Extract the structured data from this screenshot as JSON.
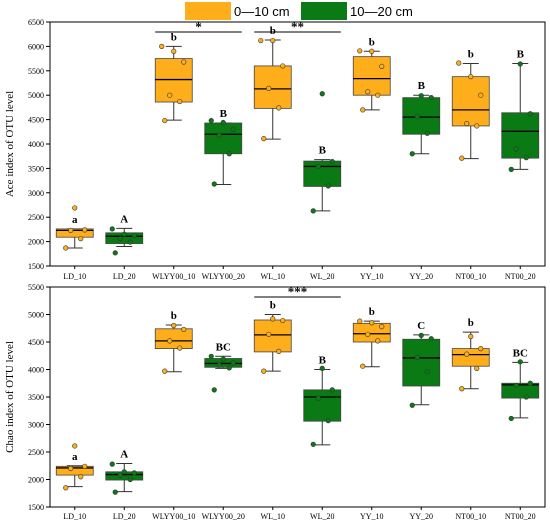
{
  "legend": [
    {
      "label": "0—10 cm",
      "color": "#FFAE1B"
    },
    {
      "label": "10—20 cm",
      "color": "#0A7A14"
    }
  ],
  "chart_data": [
    {
      "type": "boxplot",
      "ylabel": "Ace index of OTU level",
      "ylim": [
        1500,
        6500
      ],
      "yticks": [
        1500,
        2000,
        2500,
        3000,
        3500,
        4000,
        4500,
        5000,
        5500,
        6000,
        6500
      ],
      "categories": [
        "LD_10",
        "LD_20",
        "WLYY00_10",
        "WLYY00_20",
        "WL_10",
        "WL_20",
        "YY_10",
        "YY_20",
        "NT00_10",
        "NT00_20"
      ],
      "boxes": [
        {
          "whisker_low": 1870,
          "q1": 2090,
          "median": 2230,
          "q3": 2260,
          "whisker_high": 2260,
          "letter": "a",
          "points": [
            1870,
            2060,
            2230,
            2240,
            2690
          ]
        },
        {
          "whisker_low": 1900,
          "q1": 1960,
          "median": 2110,
          "q3": 2180,
          "whisker_high": 2270,
          "letter": "A",
          "points": [
            1770,
            1990,
            2060,
            2130,
            2150,
            2260
          ]
        },
        {
          "whisker_low": 4490,
          "q1": 4860,
          "median": 5320,
          "q3": 5750,
          "whisker_high": 6000,
          "letter": "b",
          "points": [
            4480,
            4870,
            5000,
            5680,
            5900,
            6000
          ]
        },
        {
          "whisker_low": 3170,
          "q1": 3800,
          "median": 4200,
          "q3": 4430,
          "whisker_high": 4430,
          "letter": "B",
          "points": [
            3180,
            3800,
            4180,
            4300,
            4440,
            4480
          ]
        },
        {
          "whisker_low": 4100,
          "q1": 4730,
          "median": 5130,
          "q3": 5600,
          "whisker_high": 6130,
          "letter": "b",
          "points": [
            4110,
            4740,
            5140,
            5600,
            6120,
            6120
          ]
        },
        {
          "whisker_low": 2630,
          "q1": 3130,
          "median": 3540,
          "q3": 3650,
          "whisker_high": 3680,
          "letter": "B",
          "points": [
            2630,
            3140,
            3540,
            3640,
            5030
          ]
        },
        {
          "whisker_low": 4700,
          "q1": 5000,
          "median": 5340,
          "q3": 5790,
          "whisker_high": 5900,
          "letter": "b",
          "points": [
            4700,
            5000,
            5070,
            5590,
            5900,
            5910
          ]
        },
        {
          "whisker_low": 3800,
          "q1": 4200,
          "median": 4550,
          "q3": 4950,
          "whisker_high": 5000,
          "letter": "B",
          "points": [
            3800,
            4220,
            4560,
            4950,
            4990
          ]
        },
        {
          "whisker_low": 3700,
          "q1": 4370,
          "median": 4700,
          "q3": 5380,
          "whisker_high": 5650,
          "letter": "b",
          "points": [
            3710,
            4370,
            4420,
            5000,
            5380,
            5660
          ]
        },
        {
          "whisker_low": 3480,
          "q1": 3710,
          "median": 4260,
          "q3": 4640,
          "whisker_high": 5650,
          "letter": "B",
          "points": [
            3480,
            3720,
            3900,
            4620,
            5640
          ]
        }
      ],
      "significance": [
        {
          "from": 2,
          "to": 3,
          "label": "*"
        },
        {
          "from": 4,
          "to": 5,
          "label": "**"
        }
      ]
    },
    {
      "type": "boxplot",
      "ylabel": "Chao index of OTU level",
      "ylim": [
        1500,
        5500
      ],
      "yticks": [
        1500,
        2000,
        2500,
        3000,
        3500,
        4000,
        4500,
        5000,
        5500
      ],
      "categories": [
        "LD_10",
        "LD_20",
        "WLYY00_10",
        "WLYY00_20",
        "WL_10",
        "WL_20",
        "YY_10",
        "YY_20",
        "NT00_10",
        "NT00_20"
      ],
      "boxes": [
        {
          "whisker_low": 1870,
          "q1": 2080,
          "median": 2210,
          "q3": 2240,
          "whisker_high": 2250,
          "letter": "a",
          "points": [
            1850,
            2050,
            2200,
            2240,
            2610
          ]
        },
        {
          "whisker_low": 1780,
          "q1": 1990,
          "median": 2090,
          "q3": 2140,
          "whisker_high": 2290,
          "letter": "A",
          "points": [
            1770,
            2000,
            2080,
            2120,
            2140,
            2280
          ]
        },
        {
          "whisker_low": 3960,
          "q1": 4380,
          "median": 4520,
          "q3": 4740,
          "whisker_high": 4810,
          "letter": "b",
          "points": [
            3970,
            4390,
            4520,
            4730,
            4800
          ]
        },
        {
          "whisker_low": 4020,
          "q1": 4040,
          "median": 4110,
          "q3": 4200,
          "whisker_high": 4240,
          "letter": "BC",
          "points": [
            3630,
            4030,
            4080,
            4120,
            4190,
            4240
          ]
        },
        {
          "whisker_low": 3970,
          "q1": 4320,
          "median": 4630,
          "q3": 4900,
          "whisker_high": 5000,
          "letter": "b",
          "points": [
            3970,
            4330,
            4640,
            4890,
            4920
          ]
        },
        {
          "whisker_low": 2630,
          "q1": 3060,
          "median": 3500,
          "q3": 3630,
          "whisker_high": 4000,
          "letter": "B",
          "points": [
            2640,
            3070,
            3480,
            3630,
            4020
          ]
        },
        {
          "whisker_low": 4050,
          "q1": 4500,
          "median": 4650,
          "q3": 4840,
          "whisker_high": 4880,
          "letter": "b",
          "points": [
            4060,
            4520,
            4640,
            4780,
            4850,
            4880
          ]
        },
        {
          "whisker_low": 3360,
          "q1": 3700,
          "median": 4210,
          "q3": 4550,
          "whisker_high": 4630,
          "letter": "C",
          "points": [
            3350,
            3960,
            4220,
            4560,
            4620
          ]
        },
        {
          "whisker_low": 3650,
          "q1": 4060,
          "median": 4270,
          "q3": 4380,
          "whisker_high": 4680,
          "letter": "b",
          "points": [
            3650,
            4020,
            4280,
            4380,
            4600
          ]
        },
        {
          "whisker_low": 3120,
          "q1": 3480,
          "median": 3720,
          "q3": 3750,
          "whisker_high": 4130,
          "letter": "BC",
          "points": [
            3110,
            3500,
            3710,
            3750,
            4140
          ]
        }
      ],
      "significance": [
        {
          "from": 4,
          "to": 5,
          "label": "***"
        }
      ]
    }
  ]
}
